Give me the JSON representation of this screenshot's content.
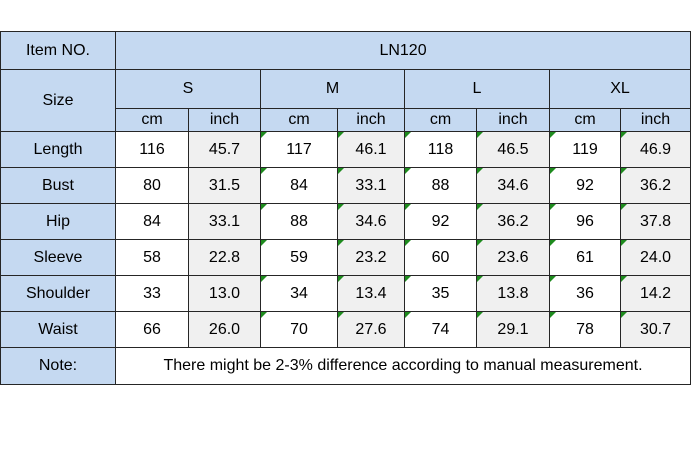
{
  "colors": {
    "header_bg": "#c5d9f1",
    "inch_bg": "#f0f0f0",
    "cm_bg": "#ffffff",
    "border": "#262626",
    "flag_green": "#1e8b1e"
  },
  "header": {
    "item_no_label": "Item NO.",
    "item_no_value": "LN120",
    "size_label": "Size",
    "sizes": [
      "S",
      "M",
      "L",
      "XL"
    ],
    "unit_row": [
      "cm",
      "inch",
      "cm",
      "inch",
      "cm",
      "inch",
      "cm",
      "inch"
    ]
  },
  "measurements": [
    {
      "label": "Length",
      "values": [
        "116",
        "45.7",
        "117",
        "46.1",
        "118",
        "46.5",
        "119",
        "46.9"
      ],
      "flags": [
        false,
        false,
        true,
        true,
        true,
        true,
        true,
        true
      ]
    },
    {
      "label": "Bust",
      "values": [
        "80",
        "31.5",
        "84",
        "33.1",
        "88",
        "34.6",
        "92",
        "36.2"
      ],
      "flags": [
        false,
        false,
        true,
        true,
        true,
        true,
        true,
        true
      ]
    },
    {
      "label": "Hip",
      "values": [
        "84",
        "33.1",
        "88",
        "34.6",
        "92",
        "36.2",
        "96",
        "37.8"
      ],
      "flags": [
        false,
        false,
        true,
        true,
        true,
        true,
        true,
        true
      ]
    },
    {
      "label": "Sleeve",
      "values": [
        "58",
        "22.8",
        "59",
        "23.2",
        "60",
        "23.6",
        "61",
        "24.0"
      ],
      "flags": [
        false,
        false,
        true,
        true,
        true,
        true,
        true,
        true
      ]
    },
    {
      "label": "Shoulder",
      "values": [
        "33",
        "13.0",
        "34",
        "13.4",
        "35",
        "13.8",
        "36",
        "14.2"
      ],
      "flags": [
        false,
        false,
        true,
        true,
        true,
        true,
        true,
        true
      ]
    },
    {
      "label": "Waist",
      "values": [
        "66",
        "26.0",
        "70",
        "27.6",
        "74",
        "29.1",
        "78",
        "30.7"
      ],
      "flags": [
        false,
        false,
        true,
        true,
        true,
        true,
        true,
        true
      ]
    }
  ],
  "note": {
    "label": "Note:",
    "text": "There might be 2-3% difference according to manual measurement."
  }
}
